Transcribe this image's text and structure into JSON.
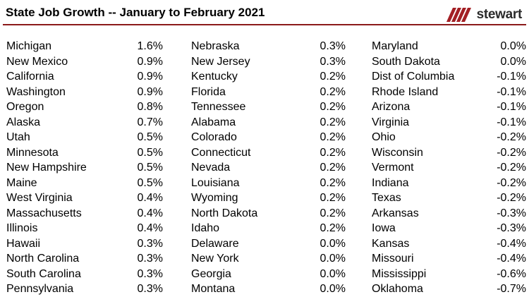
{
  "title": "State Job Growth -- January to February 2021",
  "logo": {
    "text": "stewart",
    "icon": "stewart-slashes-icon",
    "color": "#a31f24"
  },
  "rule_color": "#8b1a1a",
  "chart_data": {
    "type": "table",
    "title": "State Job Growth -- January to February 2021",
    "columns": [
      [
        {
          "state": "Michigan",
          "value": "1.6%"
        },
        {
          "state": "New Mexico",
          "value": "0.9%"
        },
        {
          "state": "California",
          "value": "0.9%"
        },
        {
          "state": "Washington",
          "value": "0.9%"
        },
        {
          "state": "Oregon",
          "value": "0.8%"
        },
        {
          "state": "Alaska",
          "value": "0.7%"
        },
        {
          "state": "Utah",
          "value": "0.5%"
        },
        {
          "state": "Minnesota",
          "value": "0.5%"
        },
        {
          "state": "New Hampshire",
          "value": "0.5%"
        },
        {
          "state": "Maine",
          "value": "0.5%"
        },
        {
          "state": "West Virginia",
          "value": "0.4%"
        },
        {
          "state": "Massachusetts",
          "value": "0.4%"
        },
        {
          "state": "Illinois",
          "value": "0.4%"
        },
        {
          "state": "Hawaii",
          "value": "0.3%"
        },
        {
          "state": "North Carolina",
          "value": "0.3%"
        },
        {
          "state": "South Carolina",
          "value": "0.3%"
        },
        {
          "state": "Pennsylvania",
          "value": "0.3%"
        }
      ],
      [
        {
          "state": "Nebraska",
          "value": "0.3%"
        },
        {
          "state": "New Jersey",
          "value": "0.3%"
        },
        {
          "state": "Kentucky",
          "value": "0.2%"
        },
        {
          "state": "Florida",
          "value": "0.2%"
        },
        {
          "state": "Tennessee",
          "value": "0.2%"
        },
        {
          "state": "Alabama",
          "value": "0.2%"
        },
        {
          "state": "Colorado",
          "value": "0.2%"
        },
        {
          "state": "Connecticut",
          "value": "0.2%"
        },
        {
          "state": "Nevada",
          "value": "0.2%"
        },
        {
          "state": "Louisiana",
          "value": "0.2%"
        },
        {
          "state": "Wyoming",
          "value": "0.2%"
        },
        {
          "state": "North Dakota",
          "value": "0.2%"
        },
        {
          "state": "Idaho",
          "value": "0.2%"
        },
        {
          "state": "Delaware",
          "value": "0.0%"
        },
        {
          "state": "New York",
          "value": "0.0%"
        },
        {
          "state": "Georgia",
          "value": "0.0%"
        },
        {
          "state": "Montana",
          "value": "0.0%"
        }
      ],
      [
        {
          "state": "Maryland",
          "value": "0.0%"
        },
        {
          "state": "South Dakota",
          "value": "0.0%"
        },
        {
          "state": "Dist of Columbia",
          "value": "-0.1%"
        },
        {
          "state": "Rhode Island",
          "value": "-0.1%"
        },
        {
          "state": "Arizona",
          "value": "-0.1%"
        },
        {
          "state": "Virginia",
          "value": "-0.1%"
        },
        {
          "state": "Ohio",
          "value": "-0.2%"
        },
        {
          "state": "Wisconsin",
          "value": "-0.2%"
        },
        {
          "state": "Vermont",
          "value": "-0.2%"
        },
        {
          "state": "Indiana",
          "value": "-0.2%"
        },
        {
          "state": "Texas",
          "value": "-0.2%"
        },
        {
          "state": "Arkansas",
          "value": "-0.3%"
        },
        {
          "state": "Iowa",
          "value": "-0.3%"
        },
        {
          "state": "Kansas",
          "value": "-0.4%"
        },
        {
          "state": "Missouri",
          "value": "-0.4%"
        },
        {
          "state": "Mississippi",
          "value": "-0.6%"
        },
        {
          "state": "Oklahoma",
          "value": "-0.7%"
        }
      ]
    ]
  }
}
